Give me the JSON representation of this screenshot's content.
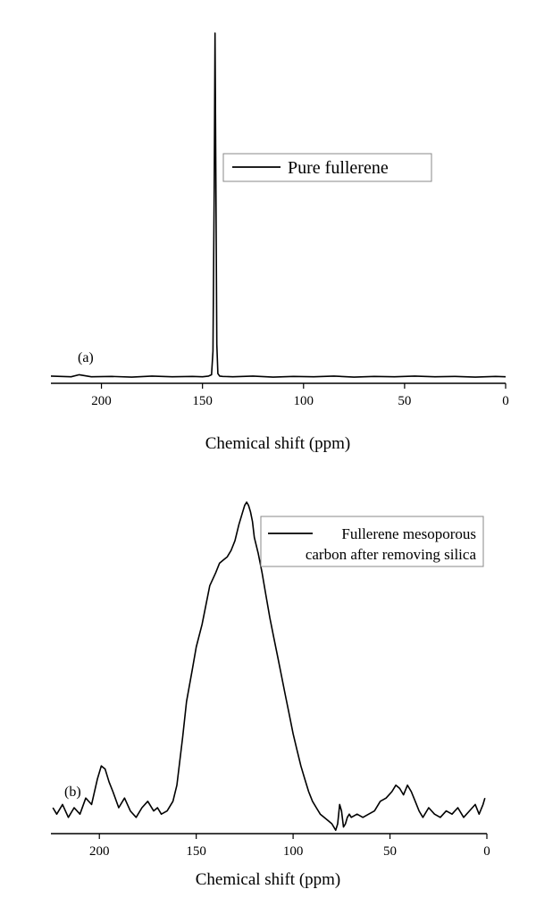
{
  "chart_data": [
    {
      "type": "line",
      "panel_label": "(a)",
      "xlabel": "Chemical shift (ppm)",
      "ylabel": "",
      "x_reversed": true,
      "xlim": [
        225,
        0
      ],
      "ylim": [
        0,
        1
      ],
      "xticks": [
        200,
        150,
        100,
        50,
        0
      ],
      "y_ticks_shown": false,
      "grid": false,
      "legend_position": "top-right",
      "series": [
        {
          "name": "Pure fullerene",
          "color": "#000000",
          "x": [
            225,
            215,
            211,
            205,
            195,
            185,
            175,
            165,
            155,
            150,
            147,
            145.5,
            144.8,
            144.2,
            143.8,
            143.4,
            142.9,
            142.4,
            141.5,
            140,
            135,
            125,
            115,
            105,
            95,
            85,
            75,
            65,
            55,
            45,
            35,
            25,
            15,
            5,
            0
          ],
          "y": [
            0.008,
            0.006,
            0.012,
            0.006,
            0.007,
            0.005,
            0.008,
            0.006,
            0.007,
            0.006,
            0.008,
            0.012,
            0.08,
            0.55,
            1.0,
            0.6,
            0.1,
            0.015,
            0.008,
            0.007,
            0.006,
            0.008,
            0.005,
            0.007,
            0.006,
            0.008,
            0.005,
            0.007,
            0.006,
            0.008,
            0.006,
            0.007,
            0.005,
            0.007,
            0.006
          ]
        }
      ]
    },
    {
      "type": "line",
      "panel_label": "(b)",
      "xlabel": "Chemical shift (ppm)",
      "ylabel": "",
      "x_reversed": true,
      "xlim": [
        225,
        0
      ],
      "ylim": [
        0,
        1
      ],
      "xticks": [
        200,
        150,
        100,
        50,
        0
      ],
      "y_ticks_shown": false,
      "grid": false,
      "legend_position": "top-right",
      "series": [
        {
          "name": "Fullerene mesoporous carbon  after removing silica",
          "color": "#000000",
          "x": [
            224,
            222,
            219,
            216,
            213,
            210,
            207,
            204,
            201,
            199,
            197,
            195,
            193,
            190,
            187,
            184,
            181,
            178,
            175,
            172,
            170,
            168,
            165,
            162,
            160,
            157,
            155,
            152,
            150,
            147,
            145,
            143,
            140,
            138,
            136,
            134,
            132,
            130,
            128,
            126,
            125,
            124,
            123,
            122,
            121,
            120,
            118,
            116,
            114,
            112,
            110,
            108,
            106,
            104,
            102,
            100,
            98,
            96,
            94,
            92,
            90,
            88,
            86,
            84,
            82,
            80,
            78,
            77,
            76,
            75,
            74,
            73,
            72,
            71,
            70,
            67,
            64,
            61,
            58,
            55,
            52,
            49,
            47,
            45,
            43,
            41,
            39,
            37,
            35,
            33,
            30,
            27,
            24,
            21,
            18,
            15,
            12,
            9,
            6,
            4,
            2,
            1
          ],
          "y": [
            0.05,
            0.03,
            0.06,
            0.02,
            0.05,
            0.03,
            0.08,
            0.06,
            0.14,
            0.18,
            0.17,
            0.13,
            0.1,
            0.05,
            0.08,
            0.04,
            0.02,
            0.05,
            0.07,
            0.04,
            0.05,
            0.03,
            0.04,
            0.07,
            0.12,
            0.27,
            0.38,
            0.48,
            0.55,
            0.62,
            0.68,
            0.74,
            0.78,
            0.81,
            0.82,
            0.83,
            0.85,
            0.88,
            0.93,
            0.97,
            0.99,
            1.0,
            0.99,
            0.97,
            0.94,
            0.89,
            0.84,
            0.78,
            0.71,
            0.64,
            0.58,
            0.52,
            0.46,
            0.4,
            0.34,
            0.28,
            0.23,
            0.18,
            0.14,
            0.1,
            0.07,
            0.05,
            0.03,
            0.02,
            0.01,
            0.0,
            -0.02,
            0.0,
            0.06,
            0.04,
            -0.01,
            0.0,
            0.02,
            0.03,
            0.02,
            0.03,
            0.02,
            0.03,
            0.04,
            0.07,
            0.08,
            0.1,
            0.12,
            0.11,
            0.09,
            0.12,
            0.1,
            0.07,
            0.04,
            0.02,
            0.05,
            0.03,
            0.02,
            0.04,
            0.03,
            0.05,
            0.02,
            0.04,
            0.06,
            0.03,
            0.06,
            0.08
          ]
        }
      ]
    }
  ]
}
